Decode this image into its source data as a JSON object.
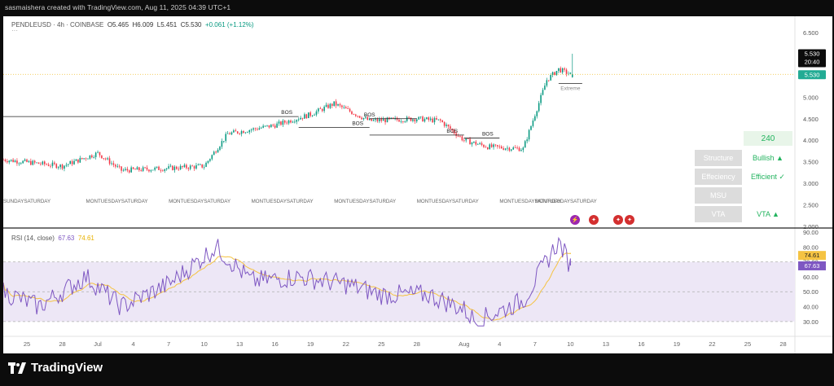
{
  "header_caption": "sasmaishera created with TradingView.com, Aug 11, 2025 04:39 UTC+1",
  "brand": {
    "name": "TradingView"
  },
  "legend": {
    "symbol": "PENDLEUSD · 4h · COINBASE",
    "open": "O5.465",
    "high": "H6.009",
    "low": "L5.451",
    "close": "C5.530",
    "change": "+0.061 (+1.12%)",
    "more": "···"
  },
  "price_badges": {
    "price": "5.530",
    "time": "20:40",
    "price2": "5.530",
    "price_color": "#0c0c0c",
    "price2_color": "#22ab94"
  },
  "price_axis": [
    "6.500",
    "6.000",
    "5.500",
    "5.000",
    "4.500",
    "4.000",
    "3.500",
    "3.000",
    "2.500",
    "2.000"
  ],
  "rsi_axis": [
    "90.00",
    "80.00",
    "70.00",
    "60.00",
    "50.00",
    "40.00",
    "30.00"
  ],
  "rsi_badges": {
    "ma": "74.61",
    "rsi": "67.63"
  },
  "rsi_legend": {
    "name": "RSI (14, close)",
    "rsi": "67.63",
    "ma": "74.61"
  },
  "time_axis": [
    "25",
    "28",
    "Jul",
    "4",
    "7",
    "10",
    "13",
    "16",
    "19",
    "22",
    "25",
    "28",
    "Aug",
    "4",
    "7",
    "10",
    "13",
    "16",
    "19",
    "22",
    "25",
    "28"
  ],
  "annotations": {
    "bos_labels": [
      "BOS",
      "BOS",
      "BOS",
      "BOS",
      "BOS"
    ],
    "extreme": "Extreme",
    "session_labels": [
      "SUNDAYSATURDAY",
      "MONTUESDAYSATURDAY",
      "MONTUESDAYSATURDAY",
      "MONTUESDAYSATURDAY",
      "MONTUESDAYSATURDAY",
      "MONTUESDAYSATURDAY",
      "MONTUESDAYSATURDAY",
      "MONTUESDAYSATURDAY"
    ]
  },
  "table": {
    "timeframe": "240",
    "rows": [
      {
        "label": "Structure",
        "value": "Bullish ▲"
      },
      {
        "label": "Effeciency",
        "value": "Efficient ✓"
      },
      {
        "label": "MSU",
        "value": ""
      },
      {
        "label": "VTA",
        "value": "VTA ▲"
      }
    ]
  },
  "colors": {
    "up": "#089981",
    "down": "#f23645",
    "rsi": "#7e57c2",
    "rsi_ma": "#f5c342",
    "rsi_band": "#ede7f6",
    "bullish": "#22b35e"
  },
  "chart_data": {
    "type": "candlestick",
    "symbol": "PENDLEUSD",
    "interval": "4h",
    "x_range": [
      "2025-06-25",
      "2025-08-28"
    ],
    "ylim": [
      2.0,
      6.5
    ],
    "ohlc_anchor_closes": [
      {
        "date": "2025-06-23",
        "close": 3.55
      },
      {
        "date": "2025-06-28",
        "close": 3.4
      },
      {
        "date": "2025-07-01",
        "close": 3.7
      },
      {
        "date": "2025-07-03",
        "close": 3.3
      },
      {
        "date": "2025-07-07",
        "close": 3.35
      },
      {
        "date": "2025-07-10",
        "close": 3.4
      },
      {
        "date": "2025-07-12",
        "close": 4.15
      },
      {
        "date": "2025-07-16",
        "close": 4.35
      },
      {
        "date": "2025-07-19",
        "close": 4.6
      },
      {
        "date": "2025-07-21",
        "close": 4.85
      },
      {
        "date": "2025-07-24",
        "close": 4.45
      },
      {
        "date": "2025-07-28",
        "close": 4.5
      },
      {
        "date": "2025-07-30",
        "close": 4.45
      },
      {
        "date": "2025-08-01",
        "close": 4.0
      },
      {
        "date": "2025-08-03",
        "close": 3.85
      },
      {
        "date": "2025-08-06",
        "close": 3.8
      },
      {
        "date": "2025-08-08",
        "close": 5.4
      },
      {
        "date": "2025-08-09",
        "close": 5.65
      },
      {
        "date": "2025-08-10",
        "close": 5.53
      }
    ],
    "last_candle": {
      "open": 5.465,
      "high": 6.009,
      "low": 5.451,
      "close": 5.53,
      "change": 0.061,
      "change_pct": 1.12
    },
    "rsi": {
      "length": 14,
      "value": 67.63,
      "ma_value": 74.61,
      "ylim": [
        25,
        90
      ],
      "bands": [
        70,
        50,
        30
      ],
      "anchors": [
        {
          "date": "2025-06-23",
          "value": 50
        },
        {
          "date": "2025-06-26",
          "value": 40
        },
        {
          "date": "2025-06-30",
          "value": 60
        },
        {
          "date": "2025-07-03",
          "value": 40
        },
        {
          "date": "2025-07-07",
          "value": 55
        },
        {
          "date": "2025-07-11",
          "value": 80
        },
        {
          "date": "2025-07-14",
          "value": 57
        },
        {
          "date": "2025-07-18",
          "value": 60
        },
        {
          "date": "2025-07-22",
          "value": 55
        },
        {
          "date": "2025-07-25",
          "value": 48
        },
        {
          "date": "2025-07-29",
          "value": 48
        },
        {
          "date": "2025-08-01",
          "value": 38
        },
        {
          "date": "2025-08-02",
          "value": 30
        },
        {
          "date": "2025-08-06",
          "value": 44
        },
        {
          "date": "2025-08-09",
          "value": 84
        },
        {
          "date": "2025-08-10",
          "value": 67.63
        }
      ]
    }
  }
}
